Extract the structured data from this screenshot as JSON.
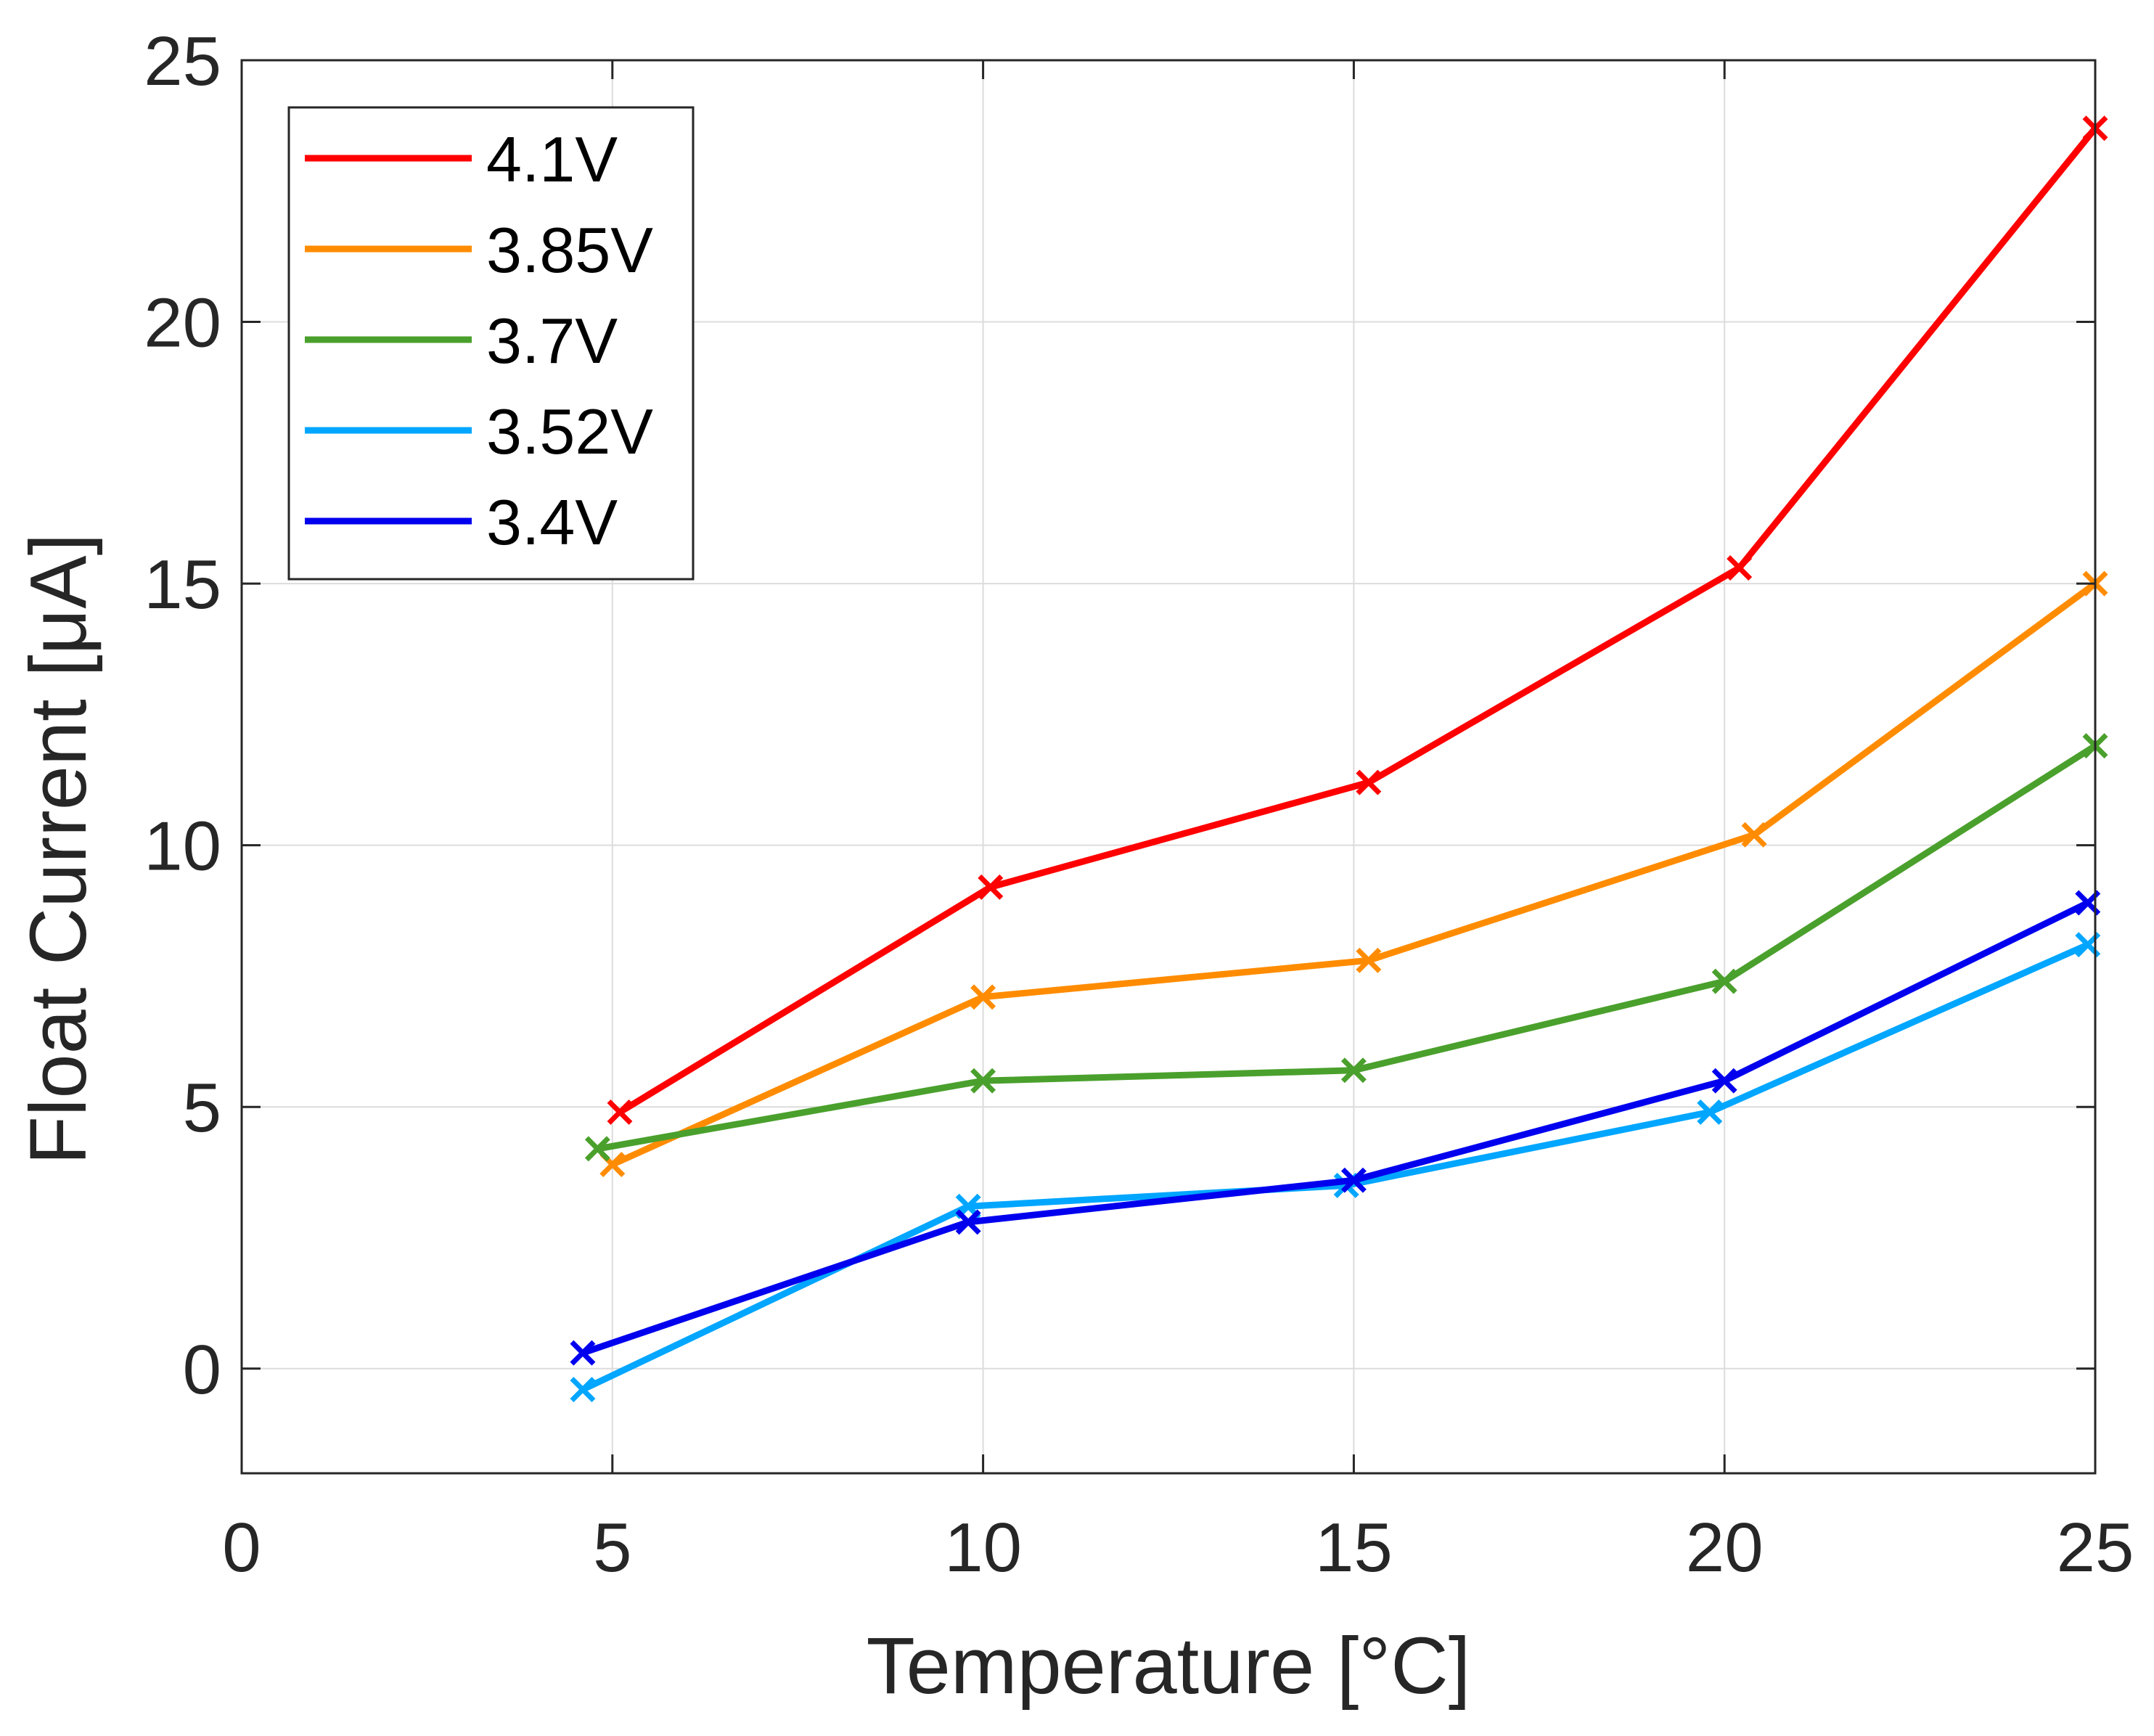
{
  "chart_data": {
    "type": "line",
    "title": "",
    "xlabel": "Temperature [°C]",
    "ylabel": "Float Current [μA]",
    "xlim": [
      0,
      25
    ],
    "ylim": [
      -2,
      25
    ],
    "xticks": [
      0,
      5,
      10,
      15,
      20,
      25
    ],
    "yticks": [
      0,
      5,
      10,
      15,
      20,
      25
    ],
    "xtick_labels": [
      "0",
      "5",
      "10",
      "15",
      "20",
      "25"
    ],
    "ytick_labels": [
      "0",
      "5",
      "10",
      "15",
      "20",
      "25"
    ],
    "grid": true,
    "marker": "x",
    "legend_position": "top-left",
    "series": [
      {
        "name": "4.1V",
        "color": "#ff0000",
        "x": [
          5.1,
          10.1,
          15.2,
          20.2,
          25
        ],
        "y": [
          4.9,
          9.2,
          11.2,
          15.3,
          23.7
        ]
      },
      {
        "name": "3.85V",
        "color": "#ff8c00",
        "x": [
          5.0,
          10.0,
          15.2,
          20.4,
          25
        ],
        "y": [
          3.9,
          7.1,
          7.8,
          10.2,
          15.0
        ]
      },
      {
        "name": "3.7V",
        "color": "#4aa02c",
        "x": [
          4.8,
          10.0,
          15.0,
          20.0,
          25
        ],
        "y": [
          4.2,
          5.5,
          5.7,
          7.4,
          11.9
        ]
      },
      {
        "name": "3.52V",
        "color": "#00a6ff",
        "x": [
          4.6,
          9.8,
          14.9,
          19.8,
          24.9
        ],
        "y": [
          -0.4,
          3.1,
          3.5,
          4.9,
          8.1
        ]
      },
      {
        "name": "3.4V",
        "color": "#0000ee",
        "x": [
          4.6,
          9.8,
          15.0,
          20.0,
          24.9
        ],
        "y": [
          0.3,
          2.8,
          3.6,
          5.5,
          8.9
        ]
      }
    ]
  }
}
